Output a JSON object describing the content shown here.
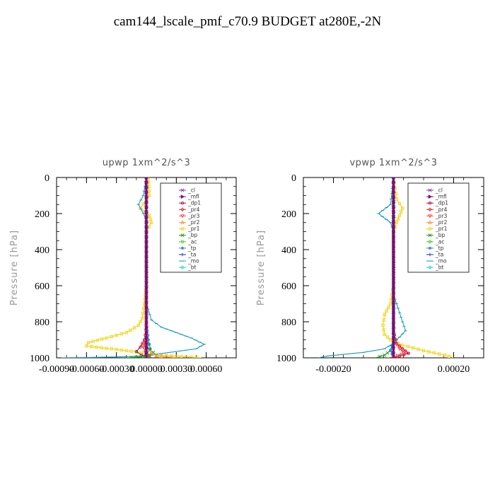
{
  "title": "cam144_lscale_pmf_c70.9  BUDGET at280E,-2N",
  "legend_entries": [
    {
      "name": "_cl",
      "color": "#8a3fb0",
      "marker": "x"
    },
    {
      "name": "_mfl",
      "color": "#7a0f7a",
      "marker": "tri-right"
    },
    {
      "name": "_dp1",
      "color": "#b0103a",
      "marker": "circle"
    },
    {
      "name": "_pr4",
      "color": "#e0302a",
      "marker": "diamond"
    },
    {
      "name": "_pr3",
      "color": "#ff4a4a",
      "marker": "tri-down"
    },
    {
      "name": "_pr2",
      "color": "#ff9a30",
      "marker": "tri-up"
    },
    {
      "name": "_pr1",
      "color": "#f2d41c",
      "marker": "square"
    },
    {
      "name": "_bp",
      "color": "#18a018",
      "marker": "x"
    },
    {
      "name": "_ac",
      "color": "#44cc22",
      "marker": "circle"
    },
    {
      "name": "_tp",
      "color": "#2e7dd8",
      "marker": "star"
    },
    {
      "name": "_ta",
      "color": "#2222cc",
      "marker": "plus"
    },
    {
      "name": "_mo",
      "color": "#1a9cbc",
      "marker": "dash"
    },
    {
      "name": "_bt",
      "color": "#22d8e8",
      "marker": "diamond"
    }
  ],
  "chart_data": [
    {
      "type": "line",
      "title": "upwp   1xm^2/s^3",
      "ylabel": "Pressure  [hPa]",
      "xlim": [
        -0.0009,
        0.0009
      ],
      "ylim": [
        1000,
        0
      ],
      "xticks": [
        "-0.00090",
        "-0.00060",
        "-0.00030",
        "0.00000",
        "0.00030",
        "0.00060"
      ],
      "yticks": [
        "0",
        "200",
        "400",
        "600",
        "800",
        "1000"
      ],
      "legend": "top-right",
      "series": [
        {
          "name": "_pr1",
          "x": [
            2e-05,
            3e-05,
            -6e-05,
            3e-05,
            5e-05,
            0.0,
            0.0,
            -2e-05,
            -4e-05,
            -8e-05,
            -0.0002,
            -0.0004,
            -0.00058,
            -0.0006,
            -0.0002,
            0.0,
            0.0001,
            0.0004,
            0.00055
          ],
          "y": [
            0,
            100,
            170,
            210,
            250,
            300,
            600,
            700,
            780,
            820,
            860,
            890,
            915,
            935,
            960,
            975,
            985,
            995,
            1000
          ]
        },
        {
          "name": "_mo",
          "x": [
            0.0,
            -3e-05,
            -8e-05,
            -3e-05,
            1e-05,
            0.0,
            0.0,
            5e-05,
            0.00015,
            0.0003,
            0.00045,
            0.00058,
            0.0005,
            0.0003,
            0.0001,
            0.0,
            -0.0003,
            -0.0006,
            -0.00085
          ],
          "y": [
            0,
            100,
            150,
            200,
            250,
            300,
            700,
            790,
            830,
            860,
            890,
            925,
            950,
            965,
            980,
            990,
            995,
            998,
            1000
          ]
        },
        {
          "name": "_tp",
          "x": [
            0.0,
            0.0,
            0.0,
            0.0,
            2e-05,
            4e-05,
            0.0,
            -1e-05,
            0.0
          ],
          "y": [
            0,
            300,
            600,
            800,
            900,
            950,
            980,
            995,
            1000
          ]
        },
        {
          "name": "_dp1",
          "x": [
            0.0,
            0.0,
            0.0,
            -2e-05,
            -6e-05,
            -0.0001,
            -5e-05,
            3e-05,
            0.0
          ],
          "y": [
            0,
            600,
            850,
            900,
            940,
            965,
            985,
            995,
            1000
          ]
        },
        {
          "name": "_pr3",
          "x": [
            0.0,
            0.0,
            -1e-05,
            -3e-05,
            -1e-05,
            2e-05,
            0.0
          ],
          "y": [
            0,
            800,
            900,
            940,
            970,
            990,
            1000
          ]
        },
        {
          "name": "_bp",
          "x": [
            0.0,
            0.0,
            2e-05,
            7e-05,
            3e-05,
            -5e-05,
            -0.0002
          ],
          "y": [
            0,
            900,
            950,
            970,
            985,
            995,
            1000
          ]
        },
        {
          "name": "_pr2",
          "x": [
            0.0,
            0.0,
            0.0001,
            0.0003
          ],
          "y": [
            0,
            950,
            990,
            1000
          ]
        },
        {
          "name": "_cl",
          "x": [
            0.0,
            0.0
          ],
          "y": [
            0,
            1000
          ]
        },
        {
          "name": "_mfl",
          "x": [
            0.0,
            0.0
          ],
          "y": [
            0,
            1000
          ]
        }
      ]
    },
    {
      "type": "line",
      "title": "vpwp   1xm^2/s^3",
      "ylabel": "Pressure  [hPa]",
      "xlim": [
        -0.0003,
        0.0003
      ],
      "ylim": [
        1000,
        0
      ],
      "xticks": [
        "-0.00020",
        "0.00000",
        "0.00020"
      ],
      "yticks": [
        "0",
        "200",
        "400",
        "600",
        "800",
        "1000"
      ],
      "legend": "top-right",
      "series": [
        {
          "name": "_pr1",
          "x": [
            0.0,
            1e-05,
            3e-05,
            2e-05,
            1e-05,
            0.0,
            0.0,
            -1e-05,
            -3e-05,
            -3.5e-05,
            -3e-05,
            -1e-05,
            3e-05,
            0.0001,
            0.00017,
            0.0002
          ],
          "y": [
            0,
            120,
            170,
            210,
            250,
            300,
            600,
            700,
            760,
            820,
            870,
            900,
            930,
            960,
            985,
            1000
          ]
        },
        {
          "name": "_mo",
          "x": [
            0.0,
            -1e-05,
            -5e-05,
            -1e-05,
            0.0,
            0.0,
            2e-05,
            4e-05,
            0.0,
            -3e-05,
            -0.0001,
            -0.00022,
            -0.00025
          ],
          "y": [
            0,
            150,
            200,
            250,
            300,
            650,
            750,
            850,
            920,
            950,
            970,
            990,
            1000
          ]
        },
        {
          "name": "_dp1",
          "x": [
            0.0,
            0.0,
            1e-05,
            3e-05,
            5e-05,
            2e-05,
            0.0
          ],
          "y": [
            0,
            850,
            920,
            950,
            975,
            990,
            1000
          ]
        },
        {
          "name": "_pr3",
          "x": [
            0.0,
            0.0,
            2e-05,
            4e-05,
            0.0,
            -2e-05
          ],
          "y": [
            0,
            900,
            950,
            975,
            995,
            1000
          ]
        },
        {
          "name": "_bp",
          "x": [
            0.0,
            0.0,
            -1e-05,
            -3e-05,
            -6e-05
          ],
          "y": [
            0,
            920,
            960,
            985,
            1000
          ]
        },
        {
          "name": "_tp",
          "x": [
            0.0,
            0.0,
            -1e-05,
            0.0
          ],
          "y": [
            0,
            900,
            960,
            1000
          ]
        },
        {
          "name": "_cl",
          "x": [
            0.0,
            0.0
          ],
          "y": [
            0,
            1000
          ]
        },
        {
          "name": "_mfl",
          "x": [
            0.0,
            0.0
          ],
          "y": [
            0,
            1000
          ]
        }
      ]
    }
  ]
}
